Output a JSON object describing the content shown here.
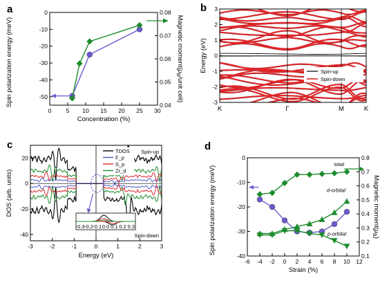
{
  "colors": {
    "purple": "#6a5acd",
    "green": "#1e8c2e",
    "red": "#e0262a",
    "blue": "#4a56c8",
    "black": "#000000"
  },
  "chart_data": [
    {
      "panel": "a",
      "type": "line",
      "xlabel": "Concentration (%)",
      "ylabel_left": "Spin polarization energy (meV)",
      "ylabel_right_prefix": "Magnetic moment(",
      "ylabel_right_mu": "μ",
      "ylabel_right_sub": "B",
      "ylabel_right_suffix": "/unit cell)",
      "xlim": [
        0,
        30
      ],
      "ylim_left": [
        -55,
        0
      ],
      "ylim_right": [
        0.04,
        0.08
      ],
      "xticks": [
        "0",
        "5",
        "10",
        "15",
        "20",
        "25",
        "30"
      ],
      "yticks_left": [
        "-50",
        "-40",
        "-30",
        "-20",
        "-10",
        "0"
      ],
      "yticks_right": [
        "0.04",
        "0.05",
        "0.06",
        "0.07",
        "0.08"
      ],
      "series": [
        {
          "axis": "left",
          "color": "purple",
          "marker": "circle",
          "x": [
            6.25,
            11.1,
            25
          ],
          "y": [
            -49.5,
            -25,
            -10
          ]
        },
        {
          "axis": "right",
          "color": "green",
          "marker": "diamond",
          "x": [
            6.25,
            8.3,
            11.1,
            25
          ],
          "y": [
            0.043,
            0.058,
            0.0675,
            0.0745
          ]
        }
      ]
    },
    {
      "panel": "b",
      "type": "line",
      "ylabel": "Energy (eV)",
      "ylim": [
        -3,
        3
      ],
      "yticks": [
        "-3",
        "-2",
        "-1",
        "0",
        "1",
        "2",
        "3"
      ],
      "kpoints": [
        "K",
        "Γ",
        "M",
        "K"
      ],
      "series": [
        {
          "name": "Spin-up",
          "color": "black"
        },
        {
          "name": "Spin-down",
          "color": "red"
        }
      ]
    },
    {
      "panel": "c",
      "type": "line",
      "xlabel": "Energy (eV)",
      "ylabel": "DOS (arb. units)",
      "xlim": [
        -3,
        3
      ],
      "ylim": [
        -45,
        30
      ],
      "xticks": [
        "-3",
        "-2",
        "-1",
        "0",
        "1",
        "2",
        "3"
      ],
      "yticks": [
        "-40",
        "-20",
        "0",
        "20"
      ],
      "spin_up_label": "Spin-up",
      "spin_down_label": "Spin-down",
      "legend": [
        {
          "name": "TDOS",
          "color": "black"
        },
        {
          "name": "F_p",
          "color": "blue"
        },
        {
          "name": "S_p",
          "color": "red"
        },
        {
          "name": "Zr_d",
          "color": "green"
        }
      ],
      "inset_xticks": [
        "-0.3",
        "-0.2",
        "-0.1",
        "0.0",
        "0.1",
        "0.2",
        "0.3"
      ]
    },
    {
      "panel": "d",
      "type": "line",
      "xlabel": "Strain (%)",
      "ylabel_left": "Spin polarization energy (meV)",
      "ylabel_right_prefix": "Magnetic moment(",
      "ylabel_right_mu": "μ",
      "ylabel_right_sub": "B",
      "ylabel_right_suffix": ")",
      "xlim": [
        -6,
        12
      ],
      "ylim_left": [
        -40,
        0
      ],
      "ylim_right": [
        0.1,
        0.8
      ],
      "xticks": [
        "-6",
        "-4",
        "-2",
        "0",
        "2",
        "4",
        "6",
        "8",
        "10",
        "12"
      ],
      "yticks_left": [
        "-40",
        "-30",
        "-20",
        "-10",
        "0"
      ],
      "yticks_right": [
        "0.1",
        "0.2",
        "0.3",
        "0.4",
        "0.5",
        "0.6",
        "0.7",
        "0.8"
      ],
      "series": [
        {
          "axis": "left",
          "color": "purple",
          "marker": "circle",
          "x": [
            -4,
            -2,
            0,
            2,
            4,
            6,
            8,
            10
          ],
          "y": [
            -17,
            -20,
            -25.5,
            -30,
            -30.5,
            -30,
            -27,
            -22
          ]
        },
        {
          "axis": "right",
          "name": "total",
          "color": "green",
          "marker": "diamond",
          "x": [
            -4,
            -2,
            0,
            2,
            4,
            6,
            8,
            10
          ],
          "y": [
            0.54,
            0.55,
            0.62,
            0.68,
            0.68,
            0.685,
            0.69,
            0.7
          ]
        },
        {
          "axis": "right",
          "name": "d-orbital",
          "color": "green",
          "marker": "triangle-up",
          "x": [
            -4,
            -2,
            0,
            2,
            4,
            6,
            8,
            10
          ],
          "y": [
            0.26,
            0.26,
            0.29,
            0.31,
            0.33,
            0.36,
            0.41,
            0.49
          ]
        },
        {
          "axis": "right",
          "name": "p-orbital",
          "color": "green",
          "marker": "triangle-down",
          "x": [
            -4,
            -2,
            0,
            2,
            4,
            6,
            8,
            10
          ],
          "y": [
            0.25,
            0.25,
            0.28,
            0.28,
            0.26,
            0.25,
            0.21,
            0.17
          ]
        }
      ]
    }
  ],
  "panel_letters": [
    "a",
    "b",
    "c",
    "d"
  ]
}
